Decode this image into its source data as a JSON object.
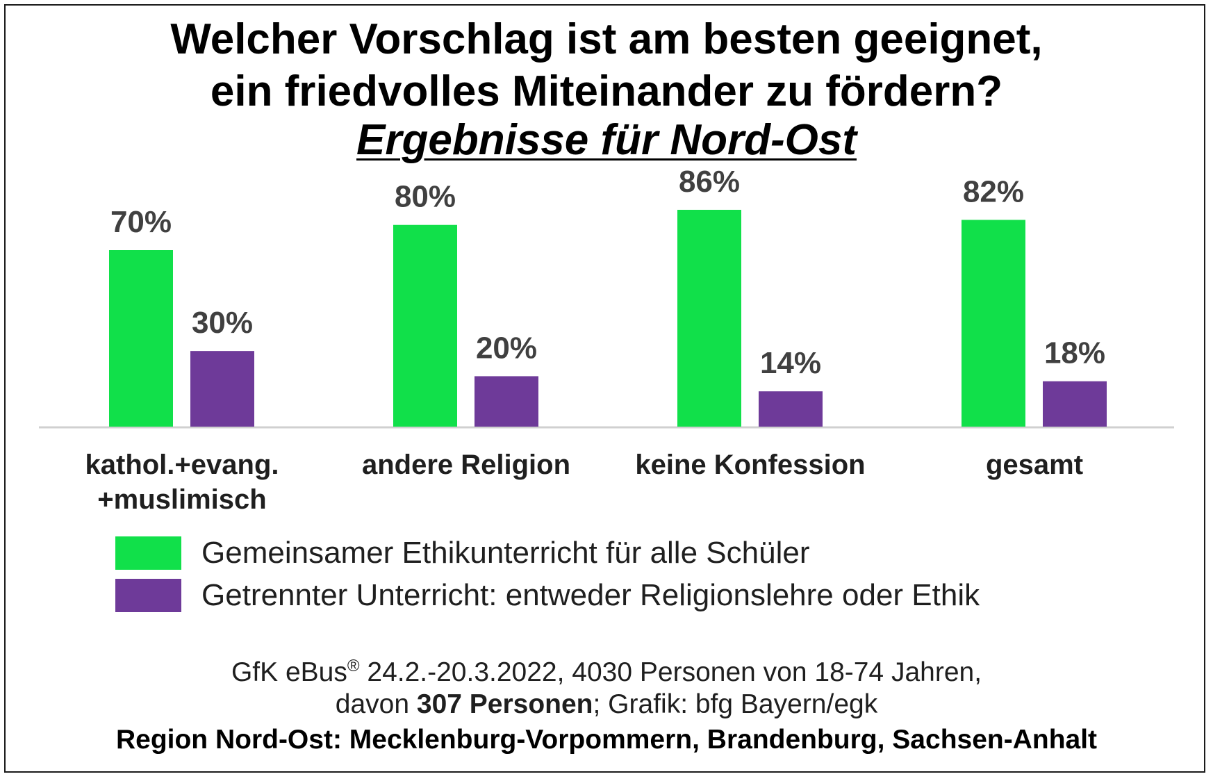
{
  "chart_data": {
    "type": "bar",
    "title_line1": "Welcher Vorschlag ist am besten geeignet,",
    "title_line2": "ein friedvolles Miteinander zu fördern?",
    "subtitle": "Ergebnisse für Nord-Ost",
    "categories": [
      "kathol.+evang.\n+muslimisch",
      "andere Religion",
      "keine Konfession",
      "gesamt"
    ],
    "series": [
      {
        "name": "Gemeinsamer Ethikunterricht  für alle Schüler",
        "color": "#11e04a",
        "values": [
          70,
          80,
          86,
          82
        ],
        "labels": [
          "70%",
          "80%",
          "86%",
          "82%"
        ]
      },
      {
        "name": "Getrennter Unterricht: entweder  Religionslehre oder Ethik",
        "color": "#6e3a99",
        "values": [
          30,
          20,
          14,
          18
        ],
        "labels": [
          "30%",
          "20%",
          "14%",
          "18%"
        ]
      }
    ],
    "ylim": [
      0,
      100
    ],
    "grid": false,
    "legend_placement": "bottom-left"
  },
  "footer": {
    "line1_prefix": "GfK eBus",
    "line1_reg": "®",
    "line1_rest": " 24.2.-20.3.2022, 4030 Personen von 18-74 Jahren,",
    "line2_prefix": "davon ",
    "line2_bold": "307 Personen",
    "line2_rest": "; Grafik: bfg Bayern/egk",
    "line3": "Region Nord-Ost: Mecklenburg-Vorpommern, Brandenburg, Sachsen-Anhalt"
  }
}
